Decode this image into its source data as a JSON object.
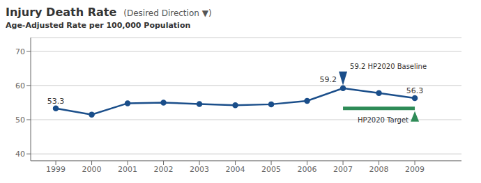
{
  "chart_data": {
    "type": "line",
    "title": "Injury Death Rate",
    "subtitle": "(Desired Direction ▼)",
    "ylabel": "Age-Adjusted Rate per 100,000 Population",
    "x": [
      1999,
      2000,
      2001,
      2002,
      2003,
      2004,
      2005,
      2006,
      2007,
      2008,
      2009
    ],
    "values": [
      53.3,
      51.5,
      54.8,
      55.0,
      54.6,
      54.2,
      54.5,
      55.5,
      59.2,
      57.8,
      56.3
    ],
    "color": "#1a4e8a",
    "marker": "circle",
    "xlim": [
      1998.3,
      2010.3
    ],
    "xticks": [
      1999,
      2000,
      2001,
      2002,
      2003,
      2004,
      2005,
      2006,
      2007,
      2008,
      2009
    ],
    "ylim": [
      38,
      74
    ],
    "yticks": [
      40,
      50,
      60,
      70
    ],
    "grid": true,
    "annotations": [
      {
        "x": 1999,
        "y": 53.3,
        "text": "53.3"
      },
      {
        "x": 2007,
        "y": 59.2,
        "text": "59.2"
      },
      {
        "x": 2009,
        "y": 56.3,
        "text": "56.3"
      }
    ],
    "baseline": {
      "x": 2007,
      "y": 59.2,
      "text": "59.2 HP2020 Baseline"
    },
    "target": {
      "x": [
        2007,
        2009
      ],
      "y": 53.3,
      "text": "HP2020 Target",
      "color": "#2e8b57"
    }
  }
}
